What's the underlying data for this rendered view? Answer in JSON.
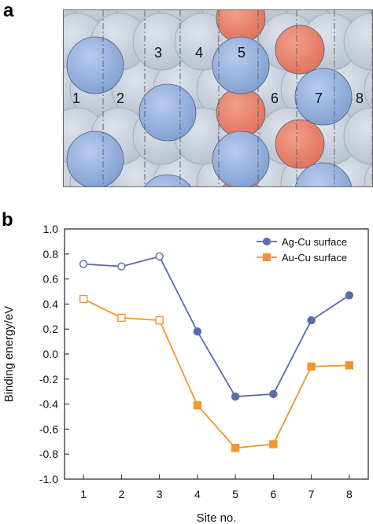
{
  "panels": {
    "a_label": "a",
    "b_label": "b"
  },
  "surface": {
    "site_labels": [
      "1",
      "2",
      "3",
      "4",
      "5",
      "6",
      "7",
      "8"
    ],
    "colors": {
      "ag_atom": "#7f9fd0",
      "cu_atom": "#dde3ec",
      "au_atom": "#e0705a",
      "background": "#b9c6d6"
    }
  },
  "chart_data": {
    "type": "line",
    "x": [
      1,
      2,
      3,
      4,
      5,
      6,
      7,
      8
    ],
    "xlabel": "Site no.",
    "ylabel": "Binding energy/eV",
    "xlim": [
      0.5,
      8.5
    ],
    "ylim": [
      -1.0,
      1.0
    ],
    "yticks": [
      "1.0",
      "0.8",
      "0.6",
      "0.4",
      "0.2",
      "0.0",
      "-0.2",
      "-0.4",
      "-0.6",
      "-0.8",
      "-1.0"
    ],
    "xticks": [
      "1",
      "2",
      "3",
      "4",
      "5",
      "6",
      "7",
      "8"
    ],
    "legend_position": "top-right",
    "grid": false,
    "series": [
      {
        "name": "Ag-Cu surface",
        "marker": "circle",
        "color": "#5a6aaa",
        "values": [
          0.72,
          0.7,
          0.78,
          0.18,
          -0.34,
          -0.32,
          0.27,
          0.47
        ],
        "open_markers": [
          true,
          true,
          true,
          false,
          false,
          false,
          false,
          false
        ]
      },
      {
        "name": "Au-Cu surface",
        "marker": "square",
        "color": "#f0962e",
        "values": [
          0.44,
          0.29,
          0.27,
          -0.41,
          -0.75,
          -0.72,
          -0.1,
          -0.09
        ],
        "open_markers": [
          true,
          true,
          true,
          false,
          false,
          false,
          false,
          false
        ]
      }
    ]
  }
}
